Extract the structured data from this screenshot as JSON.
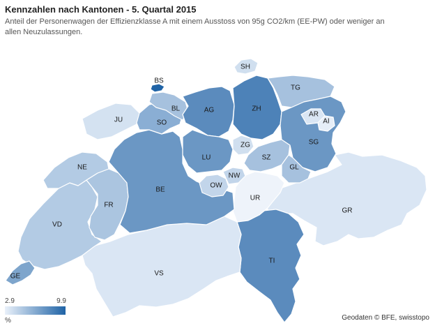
{
  "header": {
    "title": "Kennzahlen nach Kantonen - 5. Quartal 2015",
    "subtitle": "Anteil der Personenwagen der Effizienzklasse A mit einem Ausstoss von 95g CO2/km (EE-PW) oder weniger an allen Neuzulassungen."
  },
  "legend": {
    "min": "2.9",
    "max": "9.9",
    "unit": "%",
    "min_color": "#eaf1fa",
    "max_color": "#1f63a6"
  },
  "credit": "Geodaten © BFE, swisstopo",
  "cantons": {
    "GE": {
      "label": "GE",
      "color": "#7ea5cc"
    },
    "VD": {
      "label": "VD",
      "color": "#b3cbe4"
    },
    "VS": {
      "label": "VS",
      "color": "#dae6f4"
    },
    "NE": {
      "label": "NE",
      "color": "#b3cbe4"
    },
    "FR": {
      "label": "FR",
      "color": "#abc5e0"
    },
    "JU": {
      "label": "JU",
      "color": "#d4e2f1"
    },
    "BE": {
      "label": "BE",
      "color": "#6b97c4"
    },
    "SO": {
      "label": "SO",
      "color": "#8aaed4"
    },
    "BS": {
      "label": "BS",
      "color": "#1f63a6"
    },
    "BL": {
      "label": "BL",
      "color": "#a6c1de"
    },
    "AG": {
      "label": "AG",
      "color": "#5b8bbd"
    },
    "LU": {
      "label": "LU",
      "color": "#6b97c4"
    },
    "OW": {
      "label": "OW",
      "color": "#c2d5ea"
    },
    "NW": {
      "label": "NW",
      "color": "#c2d5ea"
    },
    "UR": {
      "label": "UR",
      "color": "#eef3fa"
    },
    "ZG": {
      "label": "ZG",
      "color": "#d0dfef"
    },
    "SZ": {
      "label": "SZ",
      "color": "#a6c1de"
    },
    "ZH": {
      "label": "ZH",
      "color": "#4d82b8"
    },
    "SH": {
      "label": "SH",
      "color": "#d0dfef"
    },
    "TG": {
      "label": "TG",
      "color": "#a6c1de"
    },
    "GL": {
      "label": "GL",
      "color": "#a6c1de"
    },
    "SG": {
      "label": "SG",
      "color": "#6b97c4"
    },
    "AR": {
      "label": "AR",
      "color": "#dae6f4"
    },
    "AI": {
      "label": "AI",
      "color": "#e6eef8"
    },
    "GR": {
      "label": "GR",
      "color": "#dae6f4"
    },
    "TI": {
      "label": "TI",
      "color": "#5b8bbd"
    }
  }
}
